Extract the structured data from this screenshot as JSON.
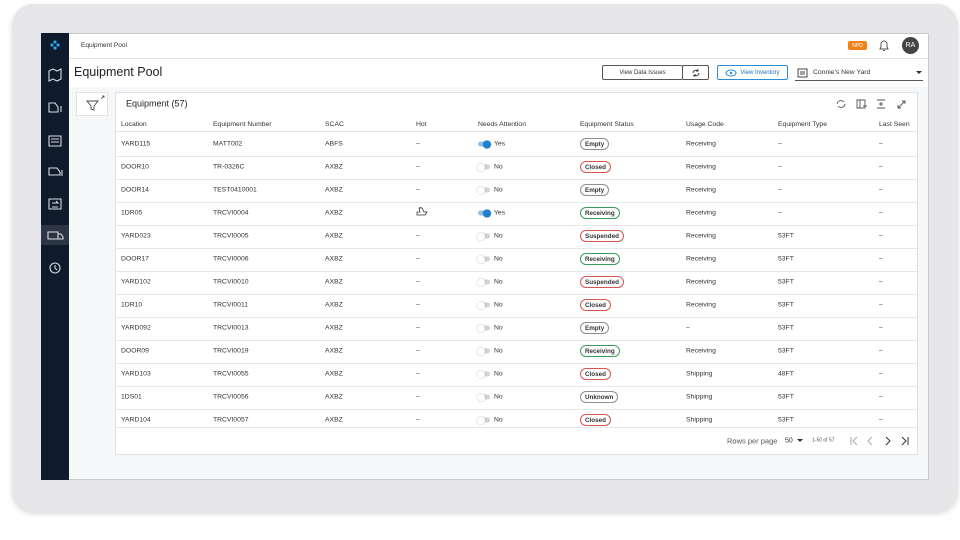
{
  "top_bar": {
    "title": "Equipment Pool",
    "badge": "NPD",
    "avatar": "RA"
  },
  "page": {
    "title": "Equipment Pool",
    "buttons": [
      "View Data Issues",
      "View Inventory"
    ],
    "yard_select": "Connie's New Yard"
  },
  "table": {
    "title": "Equipment (57)",
    "columns": [
      "Location",
      "Equipment Number",
      "SCAC",
      "Hot",
      "Needs Attention",
      "Equipment Status",
      "Usage Code",
      "Equipment Type",
      "Last Seen"
    ],
    "rows": [
      [
        "YARD115",
        "MATT002",
        "ABFS",
        "–",
        {
          "label": "Yes",
          "on": true
        },
        {
          "label": "Empty",
          "color": "#8a8f98"
        },
        "Receiving",
        "–",
        "–"
      ],
      [
        "DOOR10",
        "TR-0326C",
        "AXBZ",
        "–",
        {
          "label": "No",
          "on": false
        },
        {
          "label": "Closed",
          "color": "#d9534f"
        },
        "Receiving",
        "–",
        "–"
      ],
      [
        "DOOR14",
        "TEST0410001",
        "AXBZ",
        "–",
        {
          "label": "No",
          "on": false
        },
        {
          "label": "Empty",
          "color": "#8a8f98"
        },
        "Receiving",
        "–",
        "–"
      ],
      [
        "1DR05",
        "TRCVI0004",
        "AXBZ",
        null,
        {
          "label": "Yes",
          "on": true
        },
        {
          "label": "Receiving",
          "color": "#3a9a5b"
        },
        "Receiving",
        "–",
        "–"
      ],
      [
        "YARD023",
        "TRCVI0005",
        "AXBZ",
        "–",
        {
          "label": "No",
          "on": false
        },
        {
          "label": "Suspended",
          "color": "#d9534f"
        },
        "Receiving",
        "53FT",
        "–"
      ],
      [
        "DOOR17",
        "TRCVI0006",
        "AXBZ",
        "–",
        {
          "label": "No",
          "on": false
        },
        {
          "label": "Receiving",
          "color": "#3a9a5b"
        },
        "Receiving",
        "53FT",
        "–"
      ],
      [
        "YARD102",
        "TRCVI0010",
        "AXBZ",
        "–",
        {
          "label": "No",
          "on": false
        },
        {
          "label": "Suspended",
          "color": "#d9534f"
        },
        "Receiving",
        "53FT",
        "–"
      ],
      [
        "1DR10",
        "TRCVI0011",
        "AXBZ",
        "–",
        {
          "label": "No",
          "on": false
        },
        {
          "label": "Closed",
          "color": "#d9534f"
        },
        "Receiving",
        "53FT",
        "–"
      ],
      [
        "YARD092",
        "TRCVI0013",
        "AXBZ",
        "–",
        {
          "label": "No",
          "on": false
        },
        {
          "label": "Empty",
          "color": "#8a8f98"
        },
        "–",
        "53FT",
        "–"
      ],
      [
        "DOOR09",
        "TRCVI0019",
        "AXBZ",
        "–",
        {
          "label": "No",
          "on": false
        },
        {
          "label": "Receiving",
          "color": "#3a9a5b"
        },
        "Receiving",
        "53FT",
        "–"
      ],
      [
        "YARD103",
        "TRCVI0055",
        "AXBZ",
        "–",
        {
          "label": "No",
          "on": false
        },
        {
          "label": "Closed",
          "color": "#d9534f"
        },
        "Shipping",
        "48FT",
        "–"
      ],
      [
        "1DS01",
        "TRCVI0056",
        "AXBZ",
        "–",
        {
          "label": "No",
          "on": false
        },
        {
          "label": "Unknown",
          "color": "#8a8f98"
        },
        "Shipping",
        "53FT",
        "–"
      ],
      [
        "YARD104",
        "TRCVI0057",
        "AXBZ",
        "–",
        {
          "label": "No",
          "on": false
        },
        {
          "label": "Closed",
          "color": "#d9534f"
        },
        "Shipping",
        "53FT",
        "–"
      ]
    ],
    "footer": {
      "rows_per_page_label": "Rows per page",
      "rows_per_page": 50,
      "range": "1-50 of 57"
    }
  }
}
